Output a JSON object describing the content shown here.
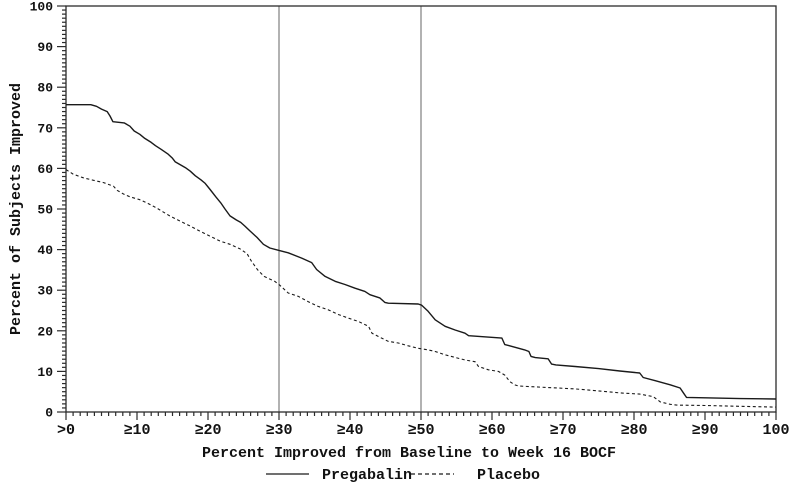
{
  "figure": {
    "background": "#ffffff",
    "description": "Cumulative percent-improvement response curve, Week 16 BOCF"
  },
  "chart_data": {
    "type": "line",
    "title": "",
    "xlabel": "Percent Improved from Baseline to Week 16 BOCF",
    "ylabel": "Percent of Subjects Improved",
    "xlim": [
      0,
      100
    ],
    "ylim": [
      0,
      100
    ],
    "grid": false,
    "minor_tick_interval": 1,
    "x_ticks": [
      {
        "value": 0,
        "label": ">0"
      },
      {
        "value": 10,
        "label": "≥10"
      },
      {
        "value": 20,
        "label": "≥20"
      },
      {
        "value": 30,
        "label": "≥30"
      },
      {
        "value": 40,
        "label": "≥40"
      },
      {
        "value": 50,
        "label": "≥50"
      },
      {
        "value": 60,
        "label": "≥60"
      },
      {
        "value": 70,
        "label": "≥70"
      },
      {
        "value": 80,
        "label": "≥80"
      },
      {
        "value": 90,
        "label": "≥90"
      },
      {
        "value": 100,
        "label": "100"
      }
    ],
    "y_ticks": [
      {
        "value": 0,
        "label": "0"
      },
      {
        "value": 10,
        "label": "10"
      },
      {
        "value": 20,
        "label": "20"
      },
      {
        "value": 30,
        "label": "30"
      },
      {
        "value": 40,
        "label": "40"
      },
      {
        "value": 50,
        "label": "50"
      },
      {
        "value": 60,
        "label": "60"
      },
      {
        "value": 70,
        "label": "70"
      },
      {
        "value": 80,
        "label": "80"
      },
      {
        "value": 90,
        "label": "90"
      },
      {
        "value": 100,
        "label": "100"
      }
    ],
    "reference_lines_x": [
      30,
      50
    ],
    "legend_position": "bottom-center",
    "legend": [
      {
        "label": "Pregabalin",
        "line_style": "solid"
      },
      {
        "label": "Placebo",
        "line_style": "dashed"
      }
    ],
    "colors": {
      "line": "#1a1a1a",
      "reference_line": "#666666",
      "frame": "#2b2b2b",
      "text": "#111111",
      "background": "#ffffff"
    },
    "series": [
      {
        "name": "Pregabalin",
        "line_style": "solid",
        "points": [
          [
            0,
            75.7
          ],
          [
            3.5,
            75.7
          ],
          [
            4.3,
            75.3
          ],
          [
            5,
            74.6
          ],
          [
            5.8,
            74
          ],
          [
            6.2,
            72.9
          ],
          [
            6.6,
            71.5
          ],
          [
            8.2,
            71.2
          ],
          [
            9,
            70.4
          ],
          [
            9.6,
            69.2
          ],
          [
            10.4,
            68.4
          ],
          [
            11.1,
            67.4
          ],
          [
            12,
            66.4
          ],
          [
            12.6,
            65.6
          ],
          [
            13.4,
            64.7
          ],
          [
            14.4,
            63.5
          ],
          [
            15,
            62.5
          ],
          [
            15.4,
            61.6
          ],
          [
            16.8,
            60.2
          ],
          [
            17.5,
            59.3
          ],
          [
            18.2,
            58.2
          ],
          [
            19,
            57.2
          ],
          [
            19.6,
            56.3
          ],
          [
            20.3,
            54.8
          ],
          [
            21.1,
            53
          ],
          [
            21.8,
            51.5
          ],
          [
            22.4,
            50
          ],
          [
            23.1,
            48.3
          ],
          [
            24,
            47.3
          ],
          [
            24.6,
            46.7
          ],
          [
            25.2,
            45.8
          ],
          [
            25.9,
            44.6
          ],
          [
            26.9,
            43
          ],
          [
            27.8,
            41.3
          ],
          [
            28.7,
            40.4
          ],
          [
            30,
            39.8
          ],
          [
            31.3,
            39.2
          ],
          [
            33.2,
            37.9
          ],
          [
            34.6,
            36.8
          ],
          [
            35.3,
            35.1
          ],
          [
            36.5,
            33.4
          ],
          [
            37.9,
            32.2
          ],
          [
            39.3,
            31.4
          ],
          [
            40.7,
            30.5
          ],
          [
            42.1,
            29.7
          ],
          [
            42.8,
            28.9
          ],
          [
            44.2,
            28.1
          ],
          [
            44.9,
            27
          ],
          [
            45.4,
            26.8
          ],
          [
            49.6,
            26.6
          ],
          [
            50.1,
            26.3
          ],
          [
            51,
            24.8
          ],
          [
            52,
            22.7
          ],
          [
            53.4,
            21.1
          ],
          [
            54.8,
            20.2
          ],
          [
            56.2,
            19.4
          ],
          [
            56.7,
            18.8
          ],
          [
            61.4,
            18.2
          ],
          [
            61.8,
            16.6
          ],
          [
            62.3,
            16.4
          ],
          [
            64.6,
            15.3
          ],
          [
            65.2,
            14.9
          ],
          [
            65.5,
            13.7
          ],
          [
            66.1,
            13.4
          ],
          [
            67.9,
            13.1
          ],
          [
            68.4,
            11.8
          ],
          [
            69,
            11.6
          ],
          [
            71.7,
            11.2
          ],
          [
            75,
            10.7
          ],
          [
            78,
            10.1
          ],
          [
            80.8,
            9.6
          ],
          [
            81.3,
            8.5
          ],
          [
            83,
            7.7
          ],
          [
            85.1,
            6.7
          ],
          [
            86.5,
            5.9
          ],
          [
            87,
            4.6
          ],
          [
            87.4,
            3.6
          ],
          [
            90,
            3.5
          ],
          [
            95,
            3.3
          ],
          [
            100,
            3.2
          ]
        ]
      },
      {
        "name": "Placebo",
        "line_style": "dashed",
        "points": [
          [
            0,
            59.7
          ],
          [
            1,
            58.6
          ],
          [
            2.4,
            57.7
          ],
          [
            3.8,
            57.1
          ],
          [
            5.3,
            56.5
          ],
          [
            6.7,
            55.6
          ],
          [
            7.2,
            54.6
          ],
          [
            8.1,
            53.7
          ],
          [
            9,
            53
          ],
          [
            10.4,
            52.3
          ],
          [
            11.4,
            51.5
          ],
          [
            12.3,
            50.7
          ],
          [
            13,
            50
          ],
          [
            14.6,
            48.3
          ],
          [
            16.1,
            47
          ],
          [
            17.5,
            45.8
          ],
          [
            18.9,
            44.5
          ],
          [
            20.3,
            43.3
          ],
          [
            21.7,
            42.1
          ],
          [
            23.1,
            41.3
          ],
          [
            24.5,
            40.2
          ],
          [
            25.5,
            39
          ],
          [
            26.1,
            37.2
          ],
          [
            27,
            35
          ],
          [
            27.9,
            33.4
          ],
          [
            29.4,
            32.2
          ],
          [
            30,
            31.4
          ],
          [
            31.3,
            29.3
          ],
          [
            32.7,
            28.5
          ],
          [
            34.1,
            27.2
          ],
          [
            35.5,
            26
          ],
          [
            36.9,
            25.2
          ],
          [
            38.4,
            24
          ],
          [
            39.8,
            23.1
          ],
          [
            41.2,
            22.3
          ],
          [
            42.6,
            21.1
          ],
          [
            43.1,
            19.4
          ],
          [
            44,
            18.6
          ],
          [
            45.4,
            17.4
          ],
          [
            46.8,
            17
          ],
          [
            48.2,
            16.3
          ],
          [
            49.6,
            15.7
          ],
          [
            51,
            15.3
          ],
          [
            52,
            14.9
          ],
          [
            53.4,
            14.1
          ],
          [
            56.2,
            12.8
          ],
          [
            57.6,
            12.4
          ],
          [
            58.1,
            11.2
          ],
          [
            59.5,
            10.4
          ],
          [
            60.9,
            10
          ],
          [
            61.8,
            9.1
          ],
          [
            62.5,
            7.5
          ],
          [
            63.2,
            6.7
          ],
          [
            63.7,
            6.4
          ],
          [
            67,
            6.1
          ],
          [
            71.7,
            5.7
          ],
          [
            75,
            5.2
          ],
          [
            78,
            4.7
          ],
          [
            80.8,
            4.4
          ],
          [
            82.7,
            3.8
          ],
          [
            83.7,
            2.5
          ],
          [
            85.1,
            1.9
          ],
          [
            86,
            1.7
          ],
          [
            90,
            1.6
          ],
          [
            95,
            1.4
          ],
          [
            100,
            1.2
          ]
        ]
      }
    ]
  }
}
